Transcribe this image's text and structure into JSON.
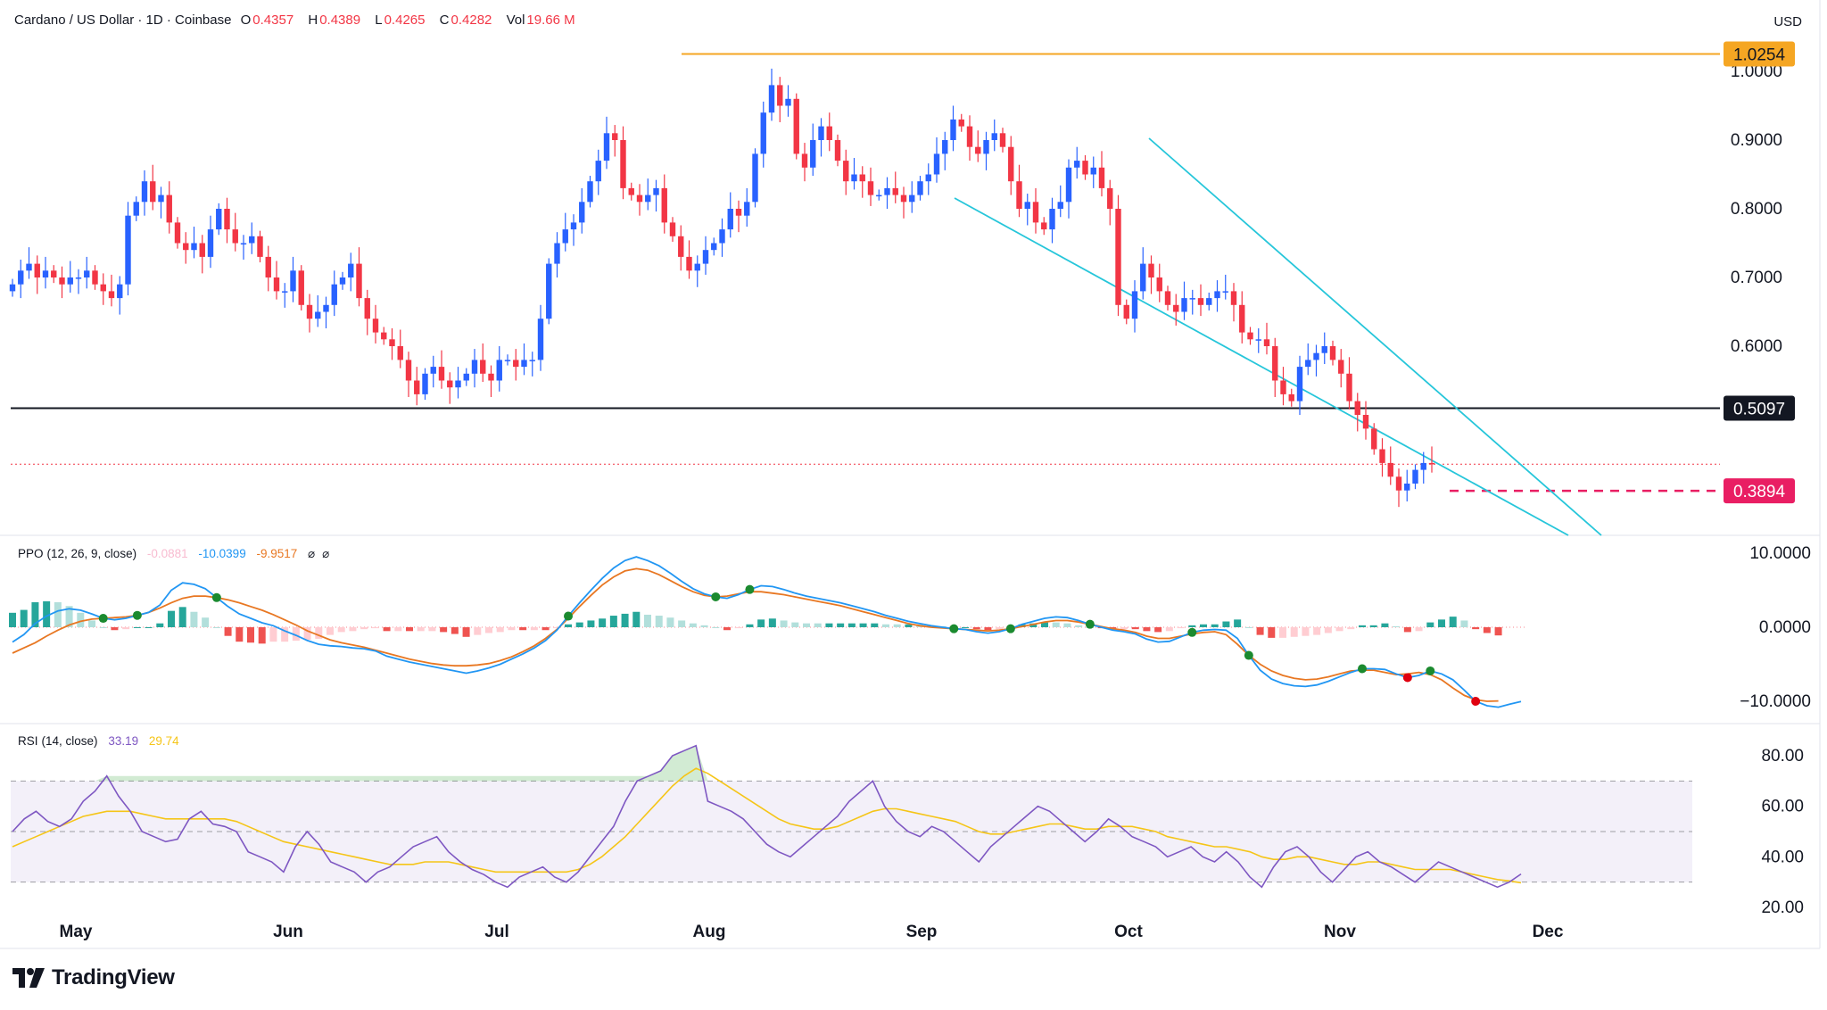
{
  "header": {
    "symbol": "Cardano / US Dollar · 1D · Coinbase",
    "o_label": "O",
    "o_value": "0.4357",
    "h_label": "H",
    "h_value": "0.4389",
    "l_label": "L",
    "l_value": "0.4265",
    "c_label": "C",
    "c_value": "0.4282",
    "vol_label": "Vol",
    "vol_value": "19.66 M",
    "currency": "USD"
  },
  "branding": {
    "logo_text": "TradingView"
  },
  "colors": {
    "up": "#2962ff",
    "down": "#f23645",
    "trendline": "#26c6da",
    "resistance": "#f5a623",
    "support": "#131722",
    "low": "#e91e63"
  },
  "chart_data": [
    {
      "type": "candlestick",
      "title": "Cardano / US Dollar",
      "x_months": [
        "May",
        "Jun",
        "Jul",
        "Aug",
        "Sep",
        "Oct",
        "Nov",
        "Dec"
      ],
      "y_ticks": [
        "1.0000",
        "0.9000",
        "0.8000",
        "0.7000",
        "0.6000"
      ],
      "ylim": [
        0.35,
        1.08
      ],
      "price_tags": [
        {
          "value": "1.0254",
          "color": "#f5a623"
        },
        {
          "value": "0.5097",
          "color": "#131722"
        },
        {
          "value": "0.3894",
          "color": "#e91e63"
        }
      ],
      "close_series": [
        0.69,
        0.71,
        0.72,
        0.7,
        0.71,
        0.7,
        0.69,
        0.7,
        0.7,
        0.71,
        0.69,
        0.68,
        0.67,
        0.69,
        0.79,
        0.81,
        0.84,
        0.81,
        0.82,
        0.78,
        0.75,
        0.74,
        0.75,
        0.73,
        0.77,
        0.8,
        0.77,
        0.75,
        0.75,
        0.76,
        0.73,
        0.7,
        0.68,
        0.68,
        0.71,
        0.66,
        0.64,
        0.65,
        0.66,
        0.69,
        0.7,
        0.72,
        0.67,
        0.64,
        0.62,
        0.61,
        0.6,
        0.58,
        0.55,
        0.53,
        0.56,
        0.57,
        0.55,
        0.54,
        0.55,
        0.56,
        0.58,
        0.56,
        0.55,
        0.58,
        0.58,
        0.57,
        0.58,
        0.58,
        0.64,
        0.72,
        0.75,
        0.77,
        0.78,
        0.81,
        0.84,
        0.87,
        0.91,
        0.9,
        0.83,
        0.82,
        0.81,
        0.82,
        0.83,
        0.78,
        0.76,
        0.73,
        0.71,
        0.72,
        0.74,
        0.75,
        0.77,
        0.8,
        0.79,
        0.81,
        0.88,
        0.94,
        0.98,
        0.95,
        0.96,
        0.88,
        0.86,
        0.9,
        0.92,
        0.9,
        0.87,
        0.84,
        0.85,
        0.84,
        0.82,
        0.82,
        0.83,
        0.82,
        0.81,
        0.82,
        0.84,
        0.85,
        0.88,
        0.9,
        0.93,
        0.92,
        0.89,
        0.88,
        0.9,
        0.91,
        0.89,
        0.84,
        0.8,
        0.81,
        0.78,
        0.77,
        0.8,
        0.81,
        0.86,
        0.87,
        0.85,
        0.86,
        0.83,
        0.8,
        0.66,
        0.64,
        0.68,
        0.72,
        0.7,
        0.68,
        0.66,
        0.65,
        0.67,
        0.67,
        0.66,
        0.67,
        0.68,
        0.68,
        0.66,
        0.62,
        0.61,
        0.61,
        0.6,
        0.55,
        0.53,
        0.52,
        0.57,
        0.58,
        0.59,
        0.6,
        0.58,
        0.56,
        0.52,
        0.5,
        0.48,
        0.45,
        0.43,
        0.41,
        0.39,
        0.4,
        0.42,
        0.43,
        0.428
      ],
      "resistance": 1.0254,
      "support": 0.5097,
      "current_price": 0.4282,
      "recent_low": 0.3894
    },
    {
      "type": "line",
      "title": "PPO",
      "params": "(12, 26, 9, close)",
      "values": [
        "-0.0881",
        "-10.0399",
        "-9.9517"
      ],
      "value_colors": [
        "#f8bbd0",
        "#2196f3",
        "#e87722"
      ],
      "y_ticks": [
        "10.0000",
        "0.0000",
        "−10.0000"
      ],
      "ylim": [
        -13,
        13
      ],
      "ppo": [
        -2,
        -1,
        0.5,
        1.5,
        2.2,
        2.5,
        2.3,
        1.8,
        1.2,
        1.0,
        1.2,
        1.6,
        2,
        3,
        5,
        6,
        5.8,
        5.2,
        4,
        2.8,
        1.8,
        1.2,
        0.6,
        0.2,
        -0.5,
        -1.1,
        -1.8,
        -2.3,
        -2.5,
        -2.6,
        -2.8,
        -2.9,
        -3.2,
        -3.9,
        -4.3,
        -4.7,
        -5.0,
        -5.3,
        -5.6,
        -5.9,
        -6.2,
        -5.9,
        -5.5,
        -5.0,
        -4.3,
        -3.6,
        -2.8,
        -1.8,
        -0.4,
        1.5,
        3.3,
        5.0,
        6.6,
        8.0,
        9.0,
        9.5,
        9.0,
        8.3,
        7.3,
        6.2,
        5.2,
        4.5,
        4.1,
        3.9,
        4.4,
        5.1,
        5.6,
        5.5,
        5.1,
        4.6,
        4.2,
        3.9,
        3.6,
        3.3,
        2.9,
        2.5,
        2.1,
        1.6,
        1.2,
        0.8,
        0.5,
        0.2,
        0,
        -0.2,
        -0.3,
        -0.6,
        -0.8,
        -0.6,
        -0.2,
        0.4,
        0.8,
        1.2,
        1.4,
        1.3,
        0.9,
        0.4,
        0,
        -0.4,
        -0.6,
        -0.9,
        -1.6,
        -2.0,
        -1.9,
        -1.3,
        -0.7,
        -0.4,
        -0.3,
        -0.4,
        -1.5,
        -3.8,
        -5.8,
        -7.0,
        -7.6,
        -7.9,
        -8.0,
        -7.8,
        -7.3,
        -6.7,
        -6.1,
        -5.6,
        -5.6,
        -5.7,
        -6.3,
        -6.8,
        -6.5,
        -5.9,
        -6.3,
        -7.1,
        -8.5,
        -10.0,
        -10.6,
        -10.8,
        -10.4,
        -10.04
      ],
      "signal": [
        -3.5,
        -2.8,
        -2.1,
        -1.2,
        -0.4,
        0.3,
        0.8,
        1.1,
        1.2,
        1.3,
        1.4,
        1.6,
        2,
        2.6,
        3.3,
        3.9,
        4.2,
        4.2,
        4.0,
        3.7,
        3.3,
        2.8,
        2.3,
        1.7,
        1.0,
        0.3,
        -0.5,
        -1.1,
        -1.7,
        -2.1,
        -2.4,
        -2.7,
        -3.1,
        -3.5,
        -3.9,
        -4.3,
        -4.6,
        -4.9,
        -5.1,
        -5.2,
        -5.2,
        -5.1,
        -4.9,
        -4.5,
        -4.0,
        -3.3,
        -2.5,
        -1.5,
        -0.3,
        1.2,
        2.8,
        4.3,
        5.7,
        6.8,
        7.6,
        7.9,
        7.7,
        7.1,
        6.3,
        5.5,
        4.8,
        4.3,
        4.1,
        4.2,
        4.5,
        4.8,
        4.8,
        4.6,
        4.4,
        4.1,
        3.8,
        3.5,
        3.2,
        2.9,
        2.5,
        2.1,
        1.7,
        1.3,
        0.9,
        0.5,
        0.2,
        0,
        -0.1,
        -0.2,
        -0.3,
        -0.4,
        -0.5,
        -0.4,
        -0.2,
        0.1,
        0.4,
        0.7,
        0.9,
        0.9,
        0.7,
        0.4,
        0.1,
        -0.2,
        -0.4,
        -0.7,
        -1.2,
        -1.5,
        -1.5,
        -1.2,
        -0.9,
        -0.7,
        -0.6,
        -1.0,
        -2.3,
        -3.8,
        -5.0,
        -5.9,
        -6.5,
        -6.9,
        -7.1,
        -7.0,
        -6.7,
        -6.3,
        -5.9,
        -5.8,
        -5.8,
        -6.1,
        -6.4,
        -6.3,
        -6.1,
        -6.4,
        -7.1,
        -8.2,
        -9.2,
        -9.8,
        -10.0,
        -9.95
      ]
    },
    {
      "type": "line",
      "title": "RSI",
      "params": "(14, close)",
      "values": [
        "33.19",
        "29.74"
      ],
      "value_colors": [
        "#7e57c2",
        "#f5c518"
      ],
      "y_ticks": [
        "80.00",
        "60.00",
        "40.00",
        "20.00"
      ],
      "ylim": [
        15,
        85
      ],
      "rsi": [
        50,
        55,
        58,
        54,
        52,
        55,
        62,
        66,
        72,
        64,
        58,
        50,
        48,
        46,
        47,
        55,
        58,
        53,
        52,
        50,
        42,
        40,
        38,
        34,
        44,
        50,
        45,
        38,
        36,
        34,
        30,
        34,
        36,
        40,
        44,
        46,
        48,
        42,
        38,
        35,
        33,
        30,
        28,
        32,
        34,
        36,
        32,
        30,
        34,
        40,
        46,
        52,
        62,
        70,
        72,
        74,
        80,
        82,
        84,
        62,
        60,
        58,
        55,
        50,
        45,
        42,
        40,
        44,
        48,
        52,
        56,
        62,
        66,
        70,
        60,
        54,
        50,
        48,
        52,
        50,
        46,
        42,
        38,
        44,
        48,
        52,
        56,
        60,
        58,
        54,
        50,
        46,
        50,
        55,
        52,
        48,
        46,
        44,
        40,
        42,
        44,
        40,
        38,
        42,
        38,
        32,
        28,
        36,
        42,
        44,
        40,
        34,
        30,
        35,
        40,
        42,
        38,
        36,
        33,
        30,
        34,
        38,
        36,
        34,
        32,
        30,
        28,
        30,
        33.19
      ],
      "rsi_ma": [
        44,
        46,
        48,
        50,
        52,
        54,
        56,
        57,
        58,
        58,
        58,
        57,
        56,
        55,
        55,
        55,
        55,
        55,
        55,
        54,
        52,
        50,
        48,
        46,
        45,
        44,
        43,
        42,
        41,
        40,
        39,
        38,
        37,
        37,
        37,
        38,
        38,
        38,
        37,
        36,
        35,
        34,
        34,
        34,
        34,
        34,
        34,
        34,
        35,
        37,
        40,
        44,
        48,
        53,
        58,
        63,
        68,
        72,
        75,
        73,
        70,
        67,
        64,
        61,
        58,
        55,
        53,
        52,
        51,
        51,
        52,
        54,
        56,
        58,
        59,
        59,
        58,
        57,
        56,
        55,
        54,
        52,
        50,
        49,
        49,
        50,
        51,
        52,
        53,
        53,
        52,
        51,
        51,
        52,
        52,
        52,
        51,
        50,
        48,
        47,
        46,
        45,
        44,
        44,
        43,
        42,
        40,
        39,
        39,
        40,
        40,
        39,
        38,
        37,
        37,
        38,
        38,
        37,
        36,
        35,
        35,
        35,
        35,
        34,
        33,
        32,
        31,
        30.5,
        29.74
      ]
    }
  ]
}
